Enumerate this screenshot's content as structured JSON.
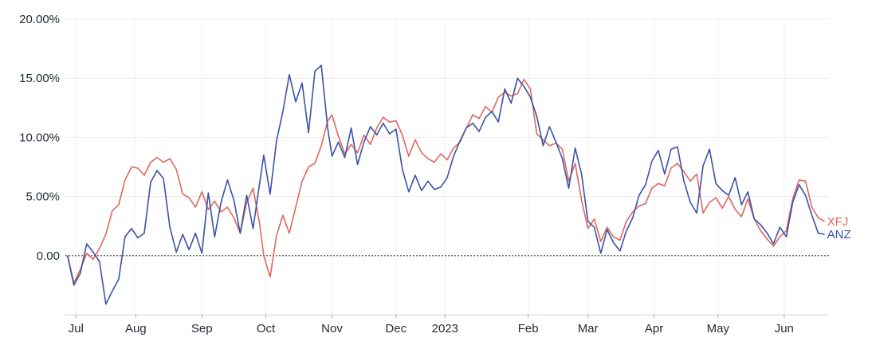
{
  "chart_data": {
    "type": "line",
    "title": "",
    "xlabel": "",
    "ylabel": "",
    "ylim": [
      -5,
      20
    ],
    "y_ticks": [
      {
        "value": 0,
        "label": "0.00"
      },
      {
        "value": 5,
        "label": "5.00%"
      },
      {
        "value": 10,
        "label": "10.00%"
      },
      {
        "value": 15,
        "label": "15.00%"
      },
      {
        "value": 20,
        "label": "20.00%"
      }
    ],
    "x_ticks": [
      {
        "date": "2022-07-04",
        "label": "Jul"
      },
      {
        "date": "2022-08-01",
        "label": "Aug"
      },
      {
        "date": "2022-09-01",
        "label": "Sep"
      },
      {
        "date": "2022-10-01",
        "label": "Oct"
      },
      {
        "date": "2022-11-01",
        "label": "Nov"
      },
      {
        "date": "2022-12-01",
        "label": "Dec"
      },
      {
        "date": "2022-12-24",
        "label": "2023"
      },
      {
        "date": "2023-02-01",
        "label": "Feb"
      },
      {
        "date": "2023-03-01",
        "label": "Mar"
      },
      {
        "date": "2023-04-01",
        "label": "Apr"
      },
      {
        "date": "2023-05-01",
        "label": "May"
      },
      {
        "date": "2023-06-01",
        "label": "Jun"
      }
    ],
    "xlim": [
      "2022-06-29",
      "2023-06-22"
    ],
    "grid": true,
    "zero_line": "dotted",
    "legend": "series labels at right end of lines",
    "series": [
      {
        "name": "XFJ",
        "color": "#e0675f",
        "x": [
          "2022-06-30",
          "2022-07-03",
          "2022-07-06",
          "2022-07-09",
          "2022-07-12",
          "2022-07-15",
          "2022-07-18",
          "2022-07-21",
          "2022-07-24",
          "2022-07-27",
          "2022-07-30",
          "2022-08-02",
          "2022-08-05",
          "2022-08-08",
          "2022-08-11",
          "2022-08-14",
          "2022-08-17",
          "2022-08-20",
          "2022-08-23",
          "2022-08-26",
          "2022-08-29",
          "2022-09-01",
          "2022-09-04",
          "2022-09-07",
          "2022-09-10",
          "2022-09-13",
          "2022-09-16",
          "2022-09-19",
          "2022-09-22",
          "2022-09-25",
          "2022-09-28",
          "2022-09-30",
          "2022-10-03",
          "2022-10-06",
          "2022-10-09",
          "2022-10-12",
          "2022-10-15",
          "2022-10-18",
          "2022-10-21",
          "2022-10-24",
          "2022-10-27",
          "2022-10-30",
          "2022-11-01",
          "2022-11-04",
          "2022-11-07",
          "2022-11-10",
          "2022-11-13",
          "2022-11-16",
          "2022-11-19",
          "2022-11-22",
          "2022-11-25",
          "2022-11-28",
          "2022-12-01",
          "2022-12-04",
          "2022-12-07",
          "2022-12-10",
          "2022-12-13",
          "2022-12-16",
          "2022-12-19",
          "2022-12-22",
          "2022-12-25",
          "2022-12-28",
          "2022-12-31",
          "2023-01-03",
          "2023-01-06",
          "2023-01-09",
          "2023-01-12",
          "2023-01-15",
          "2023-01-18",
          "2023-01-21",
          "2023-01-24",
          "2023-01-27",
          "2023-01-30",
          "2023-02-02",
          "2023-02-05",
          "2023-02-08",
          "2023-02-11",
          "2023-02-14",
          "2023-02-17",
          "2023-02-20",
          "2023-02-23",
          "2023-02-26",
          "2023-03-01",
          "2023-03-04",
          "2023-03-07",
          "2023-03-10",
          "2023-03-13",
          "2023-03-16",
          "2023-03-19",
          "2023-03-22",
          "2023-03-25",
          "2023-03-28",
          "2023-03-31",
          "2023-04-03",
          "2023-04-06",
          "2023-04-09",
          "2023-04-12",
          "2023-04-15",
          "2023-04-18",
          "2023-04-21",
          "2023-04-24",
          "2023-04-27",
          "2023-04-30",
          "2023-05-03",
          "2023-05-06",
          "2023-05-09",
          "2023-05-12",
          "2023-05-15",
          "2023-05-18",
          "2023-05-21",
          "2023-05-24",
          "2023-05-27",
          "2023-05-30",
          "2023-06-02",
          "2023-06-05",
          "2023-06-08",
          "2023-06-11",
          "2023-06-14",
          "2023-06-17",
          "2023-06-20"
        ],
        "values": [
          0.0,
          -2.3,
          -1.2,
          0.2,
          -0.3,
          0.6,
          1.8,
          3.8,
          4.3,
          6.4,
          7.5,
          7.4,
          6.8,
          7.9,
          8.3,
          7.9,
          8.2,
          7.3,
          5.2,
          4.9,
          4.1,
          5.4,
          3.9,
          4.6,
          3.7,
          4.1,
          3.2,
          1.9,
          4.5,
          5.7,
          2.8,
          0.0,
          -1.8,
          1.7,
          3.4,
          1.9,
          4.1,
          6.3,
          7.5,
          7.8,
          9.3,
          11.4,
          11.9,
          10.1,
          8.6,
          9.4,
          8.7,
          10.2,
          9.4,
          10.8,
          11.7,
          11.3,
          11.4,
          10.2,
          8.4,
          9.8,
          8.7,
          8.2,
          7.9,
          8.6,
          8.1,
          9.1,
          9.6,
          10.8,
          11.9,
          11.6,
          12.6,
          12.1,
          13.4,
          13.8,
          13.5,
          13.7,
          14.9,
          14.1,
          10.3,
          9.8,
          9.3,
          9.5,
          9.0,
          6.3,
          7.8,
          4.7,
          2.3,
          3.1,
          1.2,
          2.4,
          1.6,
          1.3,
          2.9,
          3.7,
          4.2,
          4.4,
          5.7,
          6.1,
          5.9,
          7.4,
          7.8,
          7.1,
          6.3,
          6.9,
          3.6,
          4.5,
          4.9,
          4.0,
          5.0,
          3.9,
          3.3,
          4.8,
          3.1,
          2.1,
          1.4,
          0.8,
          1.6,
          2.1,
          4.8,
          6.4,
          6.3,
          4.1,
          3.2,
          2.9
        ]
      },
      {
        "name": "ANZ",
        "color": "#3a53a4",
        "x": [
          "2022-06-30",
          "2022-07-03",
          "2022-07-06",
          "2022-07-09",
          "2022-07-12",
          "2022-07-15",
          "2022-07-18",
          "2022-07-21",
          "2022-07-24",
          "2022-07-27",
          "2022-07-30",
          "2022-08-02",
          "2022-08-05",
          "2022-08-08",
          "2022-08-11",
          "2022-08-14",
          "2022-08-17",
          "2022-08-20",
          "2022-08-23",
          "2022-08-26",
          "2022-08-29",
          "2022-09-01",
          "2022-09-04",
          "2022-09-07",
          "2022-09-10",
          "2022-09-13",
          "2022-09-16",
          "2022-09-19",
          "2022-09-22",
          "2022-09-25",
          "2022-09-28",
          "2022-09-30",
          "2022-10-03",
          "2022-10-06",
          "2022-10-09",
          "2022-10-12",
          "2022-10-15",
          "2022-10-18",
          "2022-10-21",
          "2022-10-24",
          "2022-10-27",
          "2022-10-30",
          "2022-11-01",
          "2022-11-04",
          "2022-11-07",
          "2022-11-10",
          "2022-11-13",
          "2022-11-16",
          "2022-11-19",
          "2022-11-22",
          "2022-11-25",
          "2022-11-28",
          "2022-12-01",
          "2022-12-04",
          "2022-12-07",
          "2022-12-10",
          "2022-12-13",
          "2022-12-16",
          "2022-12-19",
          "2022-12-22",
          "2022-12-25",
          "2022-12-28",
          "2022-12-31",
          "2023-01-03",
          "2023-01-06",
          "2023-01-09",
          "2023-01-12",
          "2023-01-15",
          "2023-01-18",
          "2023-01-21",
          "2023-01-24",
          "2023-01-27",
          "2023-01-30",
          "2023-02-02",
          "2023-02-05",
          "2023-02-08",
          "2023-02-11",
          "2023-02-14",
          "2023-02-17",
          "2023-02-20",
          "2023-02-23",
          "2023-02-26",
          "2023-03-01",
          "2023-03-04",
          "2023-03-07",
          "2023-03-10",
          "2023-03-13",
          "2023-03-16",
          "2023-03-19",
          "2023-03-22",
          "2023-03-25",
          "2023-03-28",
          "2023-03-31",
          "2023-04-03",
          "2023-04-06",
          "2023-04-09",
          "2023-04-12",
          "2023-04-15",
          "2023-04-18",
          "2023-04-21",
          "2023-04-24",
          "2023-04-27",
          "2023-04-30",
          "2023-05-03",
          "2023-05-06",
          "2023-05-09",
          "2023-05-12",
          "2023-05-15",
          "2023-05-18",
          "2023-05-21",
          "2023-05-24",
          "2023-05-27",
          "2023-05-30",
          "2023-06-02",
          "2023-06-05",
          "2023-06-08",
          "2023-06-11",
          "2023-06-14",
          "2023-06-17",
          "2023-06-20"
        ],
        "values": [
          0.0,
          -2.5,
          -1.5,
          1.0,
          0.3,
          -0.5,
          -4.1,
          -3.0,
          -2.0,
          1.6,
          2.3,
          1.5,
          1.9,
          6.2,
          7.2,
          6.5,
          2.4,
          0.3,
          1.8,
          0.5,
          1.9,
          0.2,
          5.3,
          1.6,
          4.5,
          6.4,
          4.7,
          1.9,
          5.1,
          2.3,
          6.0,
          8.5,
          5.2,
          9.7,
          12.2,
          15.3,
          13.0,
          14.6,
          10.4,
          15.6,
          16.1,
          10.8,
          8.4,
          9.6,
          8.3,
          10.8,
          7.7,
          9.6,
          10.9,
          10.2,
          11.2,
          10.3,
          10.7,
          7.3,
          5.4,
          6.8,
          5.5,
          6.3,
          5.6,
          5.8,
          6.6,
          8.4,
          9.7,
          10.8,
          11.2,
          10.5,
          11.7,
          12.2,
          11.3,
          14.1,
          12.9,
          15.0,
          14.3,
          13.4,
          11.8,
          9.3,
          10.9,
          9.6,
          8.2,
          5.7,
          9.1,
          6.9,
          2.9,
          2.4,
          0.2,
          2.2,
          1.1,
          0.4,
          2.1,
          3.2,
          5.1,
          6.0,
          8.0,
          8.9,
          6.9,
          9.0,
          9.2,
          6.3,
          4.5,
          3.6,
          7.6,
          9.0,
          6.1,
          5.5,
          5.1,
          6.6,
          4.3,
          5.4,
          3.1,
          2.6,
          1.9,
          1.0,
          2.4,
          1.6,
          4.5,
          6.0,
          5.1,
          3.4,
          1.9,
          1.8
        ]
      }
    ]
  }
}
